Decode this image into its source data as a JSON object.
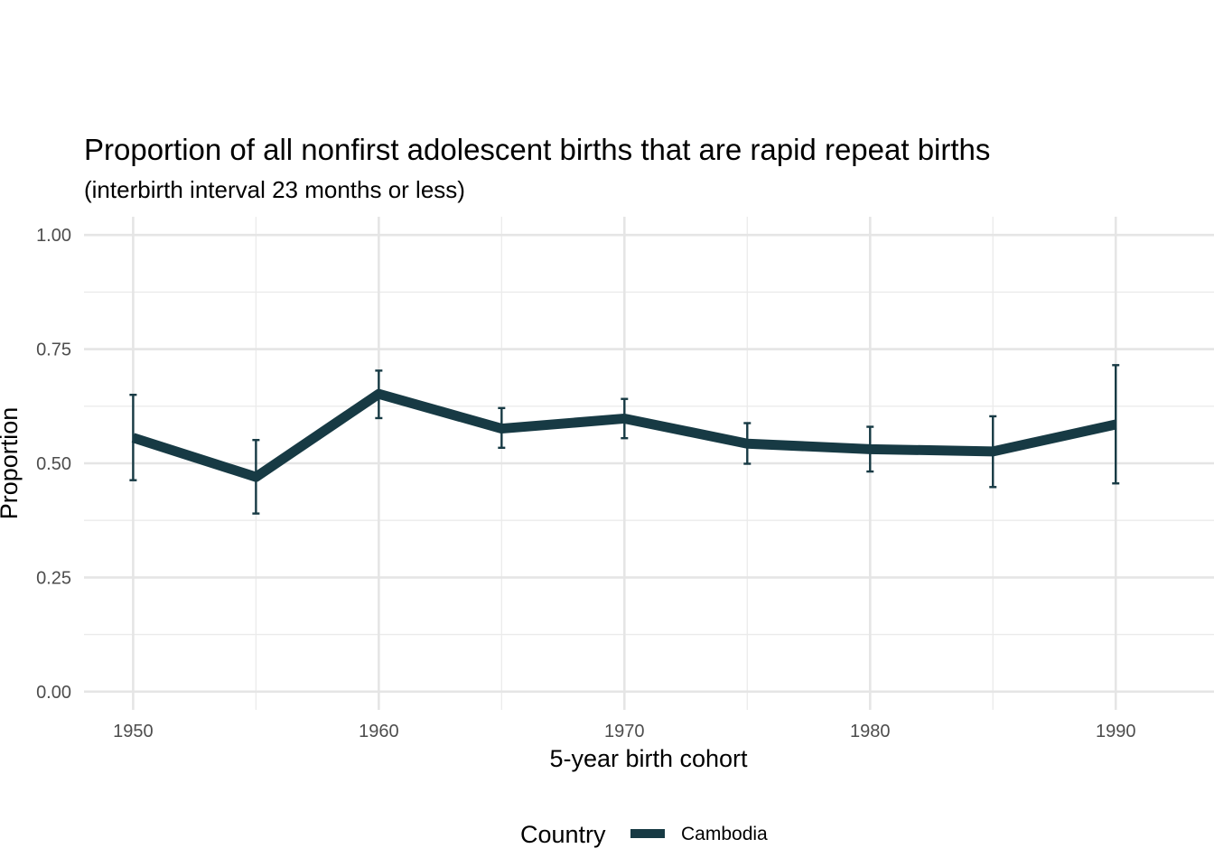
{
  "chart_data": {
    "type": "line",
    "title": "Proportion of all nonfirst adolescent births that are rapid repeat births",
    "subtitle": "(interbirth interval 23 months or less)",
    "xlabel": "5-year birth cohort",
    "ylabel": "Proportion",
    "xlim": [
      1948,
      1994
    ],
    "ylim": [
      -0.04,
      1.04
    ],
    "x_ticks": [
      1950,
      1960,
      1970,
      1980,
      1990
    ],
    "x_tick_labels": [
      "1950",
      "1960",
      "1970",
      "1980",
      "1990"
    ],
    "y_ticks": [
      0,
      0.25,
      0.5,
      0.75,
      1
    ],
    "y_tick_labels": [
      "0.00",
      "0.25",
      "0.50",
      "0.75",
      "1.00"
    ],
    "grid": true,
    "legend": {
      "title": "Country",
      "position": "bottom"
    },
    "series": [
      {
        "name": "Cambodia",
        "color": "#173a44",
        "x": [
          1950,
          1955,
          1960,
          1965,
          1970,
          1975,
          1980,
          1985,
          1990
        ],
        "y": [
          0.556,
          0.47,
          0.652,
          0.576,
          0.598,
          0.543,
          0.531,
          0.526,
          0.585
        ],
        "lower": [
          0.463,
          0.39,
          0.599,
          0.534,
          0.555,
          0.499,
          0.482,
          0.448,
          0.456
        ],
        "upper": [
          0.65,
          0.551,
          0.703,
          0.621,
          0.641,
          0.588,
          0.58,
          0.603,
          0.715
        ]
      }
    ]
  }
}
